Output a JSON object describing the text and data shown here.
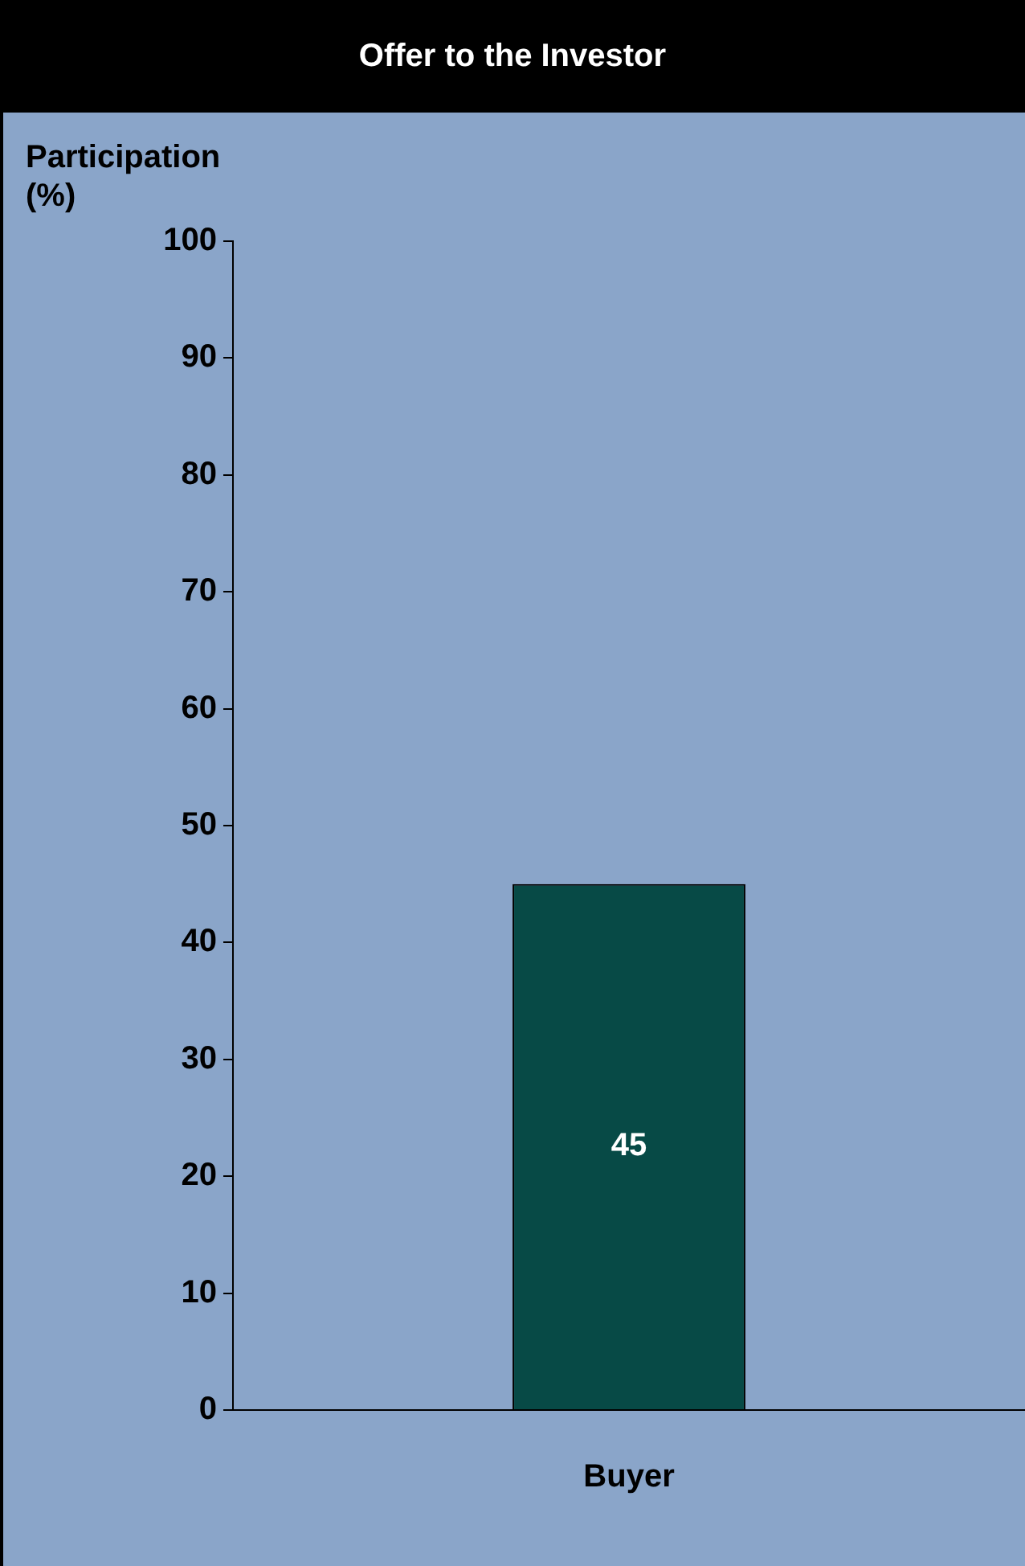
{
  "chart_data": {
    "type": "bar",
    "title": "Offer to the Investor",
    "ylabel": "Participation\n(%)",
    "categories": [
      "Buyer"
    ],
    "values": [
      45
    ],
    "color": "#074a46",
    "ylim": [
      0,
      100
    ],
    "yticks": [
      0,
      10,
      20,
      30,
      40,
      50,
      60,
      70,
      80,
      90,
      100
    ],
    "grid": false,
    "legend": false,
    "data_labels": true
  }
}
